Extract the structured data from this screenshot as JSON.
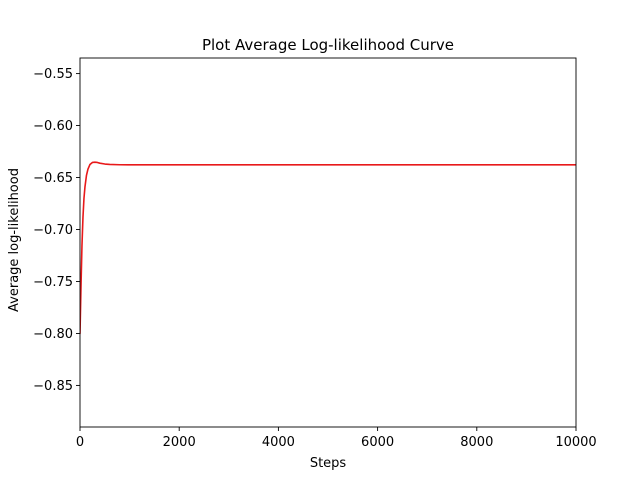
{
  "chart_data": {
    "type": "line",
    "title": "Plot Average Log-likelihood Curve",
    "xlabel": "Steps",
    "ylabel": "Average log-likelihood",
    "xlim": [
      0,
      10000
    ],
    "ylim": [
      -0.89,
      -0.535
    ],
    "xticks": [
      0,
      2000,
      4000,
      6000,
      8000,
      10000
    ],
    "xtick_labels": [
      "0",
      "2000",
      "4000",
      "6000",
      "8000",
      "10000"
    ],
    "yticks": [
      -0.85,
      -0.8,
      -0.75,
      -0.7,
      -0.65,
      -0.6,
      -0.55
    ],
    "ytick_labels": [
      "−0.85",
      "−0.80",
      "−0.75",
      "−0.70",
      "−0.65",
      "−0.60",
      "−0.55"
    ],
    "grid": false,
    "series": [
      {
        "color": "#e8191a",
        "x": [
          0,
          20,
          40,
          60,
          80,
          100,
          130,
          160,
          200,
          250,
          300,
          350,
          400,
          500,
          600,
          800,
          1000,
          1500,
          2000,
          4000,
          6000,
          8000,
          10000
        ],
        "y": [
          -0.8,
          -0.755,
          -0.715,
          -0.688,
          -0.67,
          -0.659,
          -0.648,
          -0.642,
          -0.6375,
          -0.6355,
          -0.6352,
          -0.6355,
          -0.6362,
          -0.637,
          -0.6374,
          -0.6377,
          -0.6378,
          -0.6378,
          -0.6378,
          -0.6378,
          -0.6378,
          -0.6378,
          -0.6378
        ]
      }
    ]
  }
}
